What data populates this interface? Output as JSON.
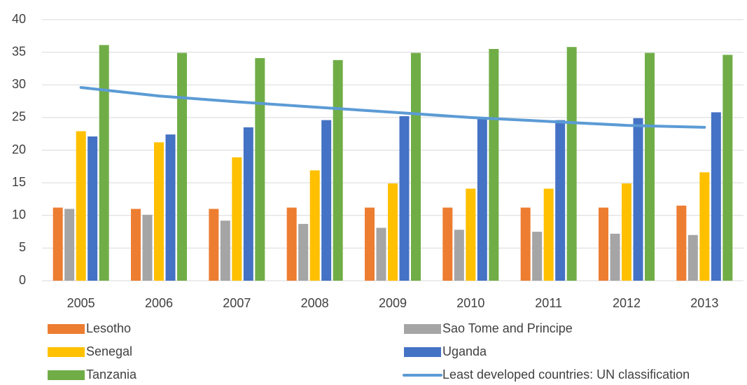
{
  "chart_data": {
    "type": "bar",
    "categories": [
      "2005",
      "2006",
      "2007",
      "2008",
      "2009",
      "2010",
      "2011",
      "2012",
      "2013"
    ],
    "series": [
      {
        "name": "Lesotho",
        "color": "#ed7d31",
        "values": [
          11.2,
          11.0,
          11.0,
          11.2,
          11.2,
          11.2,
          11.2,
          11.2,
          11.5
        ]
      },
      {
        "name": "Sao Tome and Principe",
        "color": "#a5a5a5",
        "values": [
          11.0,
          10.1,
          9.2,
          8.7,
          8.1,
          7.8,
          7.5,
          7.2,
          7.0
        ]
      },
      {
        "name": "Senegal",
        "color": "#ffc000",
        "values": [
          22.9,
          21.2,
          18.9,
          16.9,
          14.9,
          14.1,
          14.1,
          14.9,
          16.6
        ]
      },
      {
        "name": "Uganda",
        "color": "#4472c4",
        "values": [
          22.1,
          22.4,
          23.5,
          24.6,
          25.2,
          25.0,
          24.6,
          24.9,
          25.8
        ]
      },
      {
        "name": "Tanzania",
        "color": "#70ad47",
        "values": [
          36.1,
          34.9,
          34.1,
          33.8,
          34.9,
          35.5,
          35.8,
          34.9,
          34.6
        ]
      },
      {
        "name": "Least developed countries: UN classification",
        "color": "#5b9bd5",
        "type": "line",
        "values": [
          29.6,
          28.3,
          27.4,
          26.6,
          25.8,
          25.0,
          24.4,
          23.8,
          23.5
        ]
      }
    ],
    "ylim": [
      0,
      40
    ],
    "yticks": [
      0,
      5,
      10,
      15,
      20,
      25,
      30,
      35,
      40
    ],
    "grid": true,
    "legend": "bottom"
  }
}
